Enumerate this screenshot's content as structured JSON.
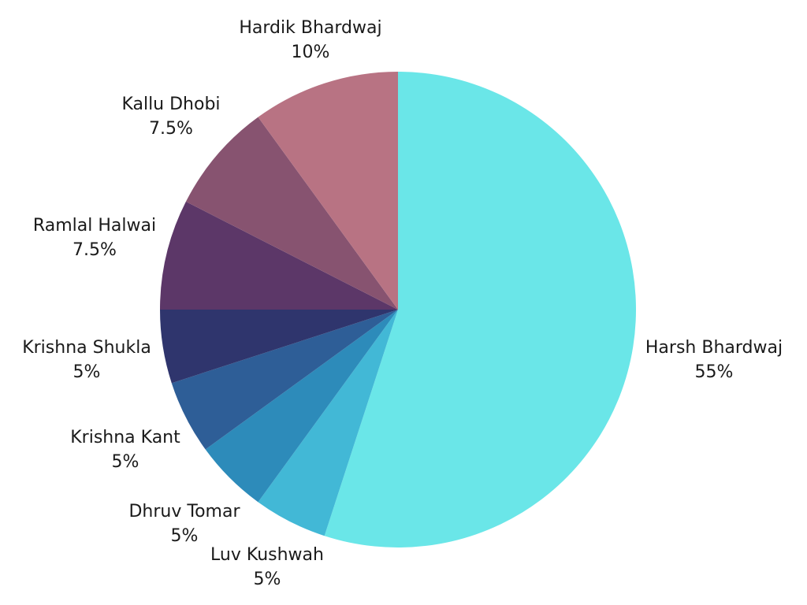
{
  "chart_data": {
    "type": "pie",
    "title": "",
    "start_angle_deg": 0,
    "direction": "clockwise",
    "slices": [
      {
        "label": "Harsh Bhardwaj",
        "value": 55,
        "value_label": "55%",
        "color": "#6ae6e8"
      },
      {
        "label": "Luv Kushwah",
        "value": 5,
        "value_label": "5%",
        "color": "#42b8d6"
      },
      {
        "label": "Dhruv Tomar",
        "value": 5,
        "value_label": "5%",
        "color": "#2d8bba"
      },
      {
        "label": "Krishna Kant",
        "value": 5,
        "value_label": "5%",
        "color": "#2e5e97"
      },
      {
        "label": "Krishna Shukla",
        "value": 5,
        "value_label": "5%",
        "color": "#2f356d"
      },
      {
        "label": "Ramlal Halwai",
        "value": 7.5,
        "value_label": "7.5%",
        "color": "#5c3768"
      },
      {
        "label": "Kallu Dhobi",
        "value": 7.5,
        "value_label": "7.5%",
        "color": "#875370"
      },
      {
        "label": "Hardik Bhardwaj",
        "value": 10,
        "value_label": "10%",
        "color": "#b87383"
      }
    ]
  }
}
